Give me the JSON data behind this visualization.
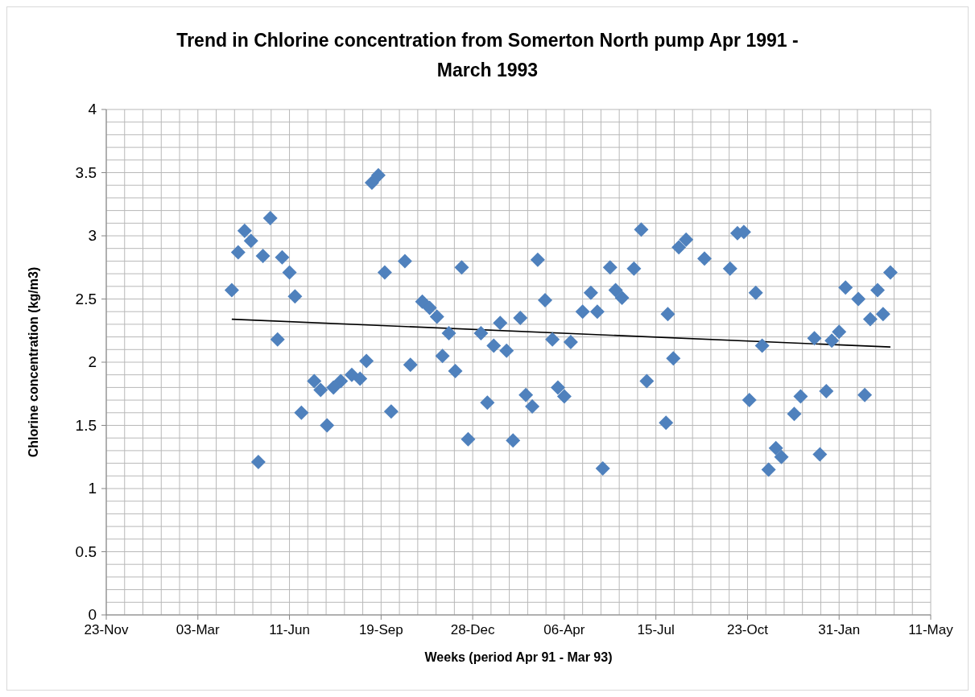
{
  "chart_data": {
    "type": "scatter",
    "title": "Trend in Chlorine concentration from Somerton North pump Apr 1991 - March 1993",
    "xlabel": "Weeks (period Apr 91 - Mar 93)",
    "ylabel": "Chlorine concentration (kg/m3)",
    "xlim": [
      "1990-11-23",
      "1993-05-11"
    ],
    "ylim": [
      0,
      4
    ],
    "xticks": [
      {
        "value": "1990-11-23",
        "label": "23-Nov"
      },
      {
        "value": "1990-12-13",
        "label": null
      },
      {
        "value": "1991-01-02",
        "label": null
      },
      {
        "value": "1991-01-22",
        "label": null
      },
      {
        "value": "1991-02-11",
        "label": null
      },
      {
        "value": "1991-03-03",
        "label": "03-Mar"
      },
      {
        "value": "1991-03-23",
        "label": null
      },
      {
        "value": "1991-04-12",
        "label": null
      },
      {
        "value": "1991-05-02",
        "label": null
      },
      {
        "value": "1991-05-22",
        "label": null
      },
      {
        "value": "1991-06-11",
        "label": "11-Jun"
      },
      {
        "value": "1991-07-01",
        "label": null
      },
      {
        "value": "1991-07-21",
        "label": null
      },
      {
        "value": "1991-08-10",
        "label": null
      },
      {
        "value": "1991-08-30",
        "label": null
      },
      {
        "value": "1991-09-19",
        "label": "19-Sep"
      },
      {
        "value": "1991-10-09",
        "label": null
      },
      {
        "value": "1991-10-29",
        "label": null
      },
      {
        "value": "1991-11-18",
        "label": null
      },
      {
        "value": "1991-12-08",
        "label": null
      },
      {
        "value": "1991-12-28",
        "label": "28-Dec"
      },
      {
        "value": "1992-01-17",
        "label": null
      },
      {
        "value": "1992-02-06",
        "label": null
      },
      {
        "value": "1992-02-26",
        "label": null
      },
      {
        "value": "1992-03-17",
        "label": null
      },
      {
        "value": "1992-04-06",
        "label": "06-Apr"
      },
      {
        "value": "1992-04-26",
        "label": null
      },
      {
        "value": "1992-05-16",
        "label": null
      },
      {
        "value": "1992-06-05",
        "label": null
      },
      {
        "value": "1992-06-25",
        "label": null
      },
      {
        "value": "1992-07-15",
        "label": "15-Jul"
      },
      {
        "value": "1992-08-04",
        "label": null
      },
      {
        "value": "1992-08-24",
        "label": null
      },
      {
        "value": "1992-09-13",
        "label": null
      },
      {
        "value": "1992-10-03",
        "label": null
      },
      {
        "value": "1992-10-23",
        "label": "23-Oct"
      },
      {
        "value": "1992-11-12",
        "label": null
      },
      {
        "value": "1992-12-02",
        "label": null
      },
      {
        "value": "1992-12-22",
        "label": null
      },
      {
        "value": "1993-01-11",
        "label": null
      },
      {
        "value": "1993-01-31",
        "label": "31-Jan"
      },
      {
        "value": "1993-02-20",
        "label": null
      },
      {
        "value": "1993-03-12",
        "label": null
      },
      {
        "value": "1993-04-01",
        "label": null
      },
      {
        "value": "1993-04-21",
        "label": null
      },
      {
        "value": "1993-05-11",
        "label": "11-May"
      }
    ],
    "yticks": [
      0,
      {
        "value": 0.1,
        "label": null
      },
      {
        "value": 0.2,
        "label": null
      },
      {
        "value": 0.3,
        "label": null
      },
      {
        "value": 0.4,
        "label": null
      },
      0.5,
      {
        "value": 0.6,
        "label": null
      },
      {
        "value": 0.7,
        "label": null
      },
      {
        "value": 0.8,
        "label": null
      },
      {
        "value": 0.9,
        "label": null
      },
      1,
      {
        "value": 1.1,
        "label": null
      },
      {
        "value": 1.2,
        "label": null
      },
      {
        "value": 1.3,
        "label": null
      },
      {
        "value": 1.4,
        "label": null
      },
      1.5,
      {
        "value": 1.6,
        "label": null
      },
      {
        "value": 1.7,
        "label": null
      },
      {
        "value": 1.8,
        "label": null
      },
      {
        "value": 1.9,
        "label": null
      },
      2,
      {
        "value": 2.1,
        "label": null
      },
      {
        "value": 2.2,
        "label": null
      },
      {
        "value": 2.3,
        "label": null
      },
      {
        "value": 2.4,
        "label": null
      },
      2.5,
      {
        "value": 2.6,
        "label": null
      },
      {
        "value": 2.7,
        "label": null
      },
      {
        "value": 2.8,
        "label": null
      },
      {
        "value": 2.9,
        "label": null
      },
      3,
      {
        "value": 3.1,
        "label": null
      },
      {
        "value": 3.2,
        "label": null
      },
      {
        "value": 3.3,
        "label": null
      },
      {
        "value": 3.4,
        "label": null
      },
      3.5,
      {
        "value": 3.6,
        "label": null
      },
      {
        "value": 3.7,
        "label": null
      },
      {
        "value": 3.8,
        "label": null
      },
      {
        "value": 3.9,
        "label": null
      },
      4
    ],
    "grid": true,
    "series": [
      {
        "color": "#4f81bd",
        "marker": "diamond",
        "x": [
          "1991-04-09",
          "1991-04-16",
          "1991-04-23",
          "1991-04-30",
          "1991-05-08",
          "1991-05-13",
          "1991-05-21",
          "1991-05-29",
          "1991-06-03",
          "1991-06-11",
          "1991-06-17",
          "1991-06-24",
          "1991-07-08",
          "1991-07-15",
          "1991-07-22",
          "1991-07-29",
          "1991-08-06",
          "1991-08-18",
          "1991-08-27",
          "1991-09-03",
          "1991-09-09",
          "1991-09-16",
          "1991-09-23",
          "1991-09-30",
          "1991-10-15",
          "1991-10-21",
          "1991-11-03",
          "1991-11-11",
          "1991-11-19",
          "1991-11-25",
          "1991-12-02",
          "1991-12-09",
          "1991-12-16",
          "1991-12-23",
          "1992-01-06",
          "1992-01-13",
          "1992-01-20",
          "1992-01-27",
          "1992-02-03",
          "1992-02-10",
          "1992-02-18",
          "1992-02-24",
          "1992-03-02",
          "1992-03-08",
          "1992-03-16",
          "1992-03-24",
          "1992-03-30",
          "1992-04-06",
          "1992-04-13",
          "1992-04-26",
          "1992-05-05",
          "1992-05-12",
          "1992-05-18",
          "1992-05-26",
          "1992-06-01",
          "1992-06-08",
          "1992-06-21",
          "1992-06-29",
          "1992-07-05",
          "1992-07-26",
          "1992-07-28",
          "1992-08-03",
          "1992-08-09",
          "1992-08-17",
          "1992-09-06",
          "1992-10-04",
          "1992-10-12",
          "1992-10-19",
          "1992-10-25",
          "1992-11-01",
          "1992-11-08",
          "1992-11-15",
          "1992-11-23",
          "1992-11-29",
          "1992-12-13",
          "1992-12-20",
          "1993-01-04",
          "1993-01-10",
          "1993-01-17",
          "1993-01-23",
          "1993-01-31",
          "1993-02-07",
          "1993-02-21",
          "1993-02-28",
          "1993-03-06",
          "1993-03-14",
          "1993-03-20",
          "1993-03-28"
        ],
        "values": [
          2.57,
          2.87,
          3.04,
          2.96,
          1.21,
          2.84,
          3.14,
          2.18,
          2.83,
          2.71,
          2.52,
          1.6,
          1.85,
          1.78,
          1.5,
          1.8,
          1.85,
          1.9,
          1.87,
          2.01,
          3.42,
          3.48,
          2.71,
          1.61,
          2.8,
          1.98,
          2.48,
          2.43,
          2.36,
          2.05,
          2.23,
          1.93,
          2.75,
          1.39,
          2.23,
          1.68,
          2.13,
          2.31,
          2.09,
          1.38,
          2.35,
          1.74,
          1.65,
          2.81,
          2.49,
          2.18,
          1.8,
          1.73,
          2.16,
          2.4,
          2.55,
          2.4,
          1.16,
          2.75,
          2.57,
          2.51,
          2.74,
          3.05,
          1.85,
          1.52,
          2.38,
          2.03,
          2.91,
          2.97,
          2.82,
          2.74,
          3.02,
          3.03,
          1.7,
          2.55,
          2.13,
          1.15,
          1.32,
          1.25,
          1.59,
          1.73,
          2.19,
          1.27,
          1.77,
          2.17,
          2.24,
          2.59,
          2.5,
          1.74,
          2.34,
          2.57,
          2.38,
          2.71
        ]
      },
      {
        "type": "line",
        "color": "#000000",
        "marker": "none",
        "line_style": "solid",
        "x": [
          "1991-04-09",
          "1993-03-28"
        ],
        "values": [
          2.34,
          2.12
        ]
      }
    ]
  }
}
